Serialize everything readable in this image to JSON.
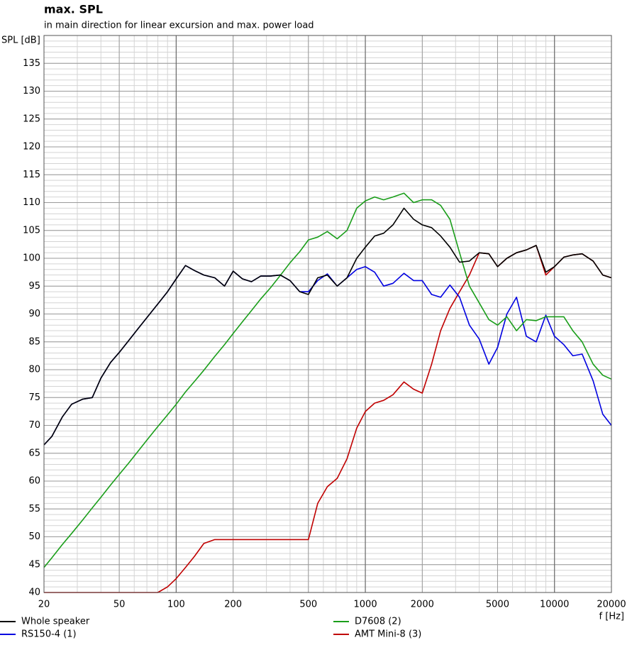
{
  "chart_data": {
    "type": "line",
    "title": "max. SPL",
    "subtitle": "in main direction for linear excursion and max. power load",
    "y_label": "SPL [dB]",
    "x_label": "f [Hz]",
    "x_scale": "log",
    "grid": true,
    "legend": "bottom",
    "xlim": [
      20,
      20000
    ],
    "ylim": [
      40,
      140
    ],
    "xticks": [
      20,
      50,
      100,
      200,
      500,
      1000,
      2000,
      5000,
      10000,
      20000
    ],
    "yticks": [
      40,
      45,
      50,
      55,
      60,
      65,
      70,
      75,
      80,
      85,
      90,
      95,
      100,
      105,
      110,
      115,
      120,
      125,
      130,
      135
    ],
    "x": [
      20,
      22,
      25,
      28,
      32,
      36,
      40,
      45,
      50,
      56,
      63,
      71,
      80,
      90,
      100,
      112,
      125,
      140,
      160,
      180,
      200,
      224,
      250,
      280,
      315,
      355,
      400,
      450,
      500,
      560,
      630,
      710,
      800,
      900,
      1000,
      1120,
      1250,
      1400,
      1600,
      1800,
      2000,
      2240,
      2500,
      2800,
      3150,
      3550,
      4000,
      4500,
      5000,
      5600,
      6300,
      7100,
      8000,
      9000,
      10000,
      11200,
      12500,
      14000,
      16000,
      18000,
      20000
    ],
    "series": [
      {
        "name": "Whole speaker",
        "color": "#000000",
        "values": [
          66.5,
          68,
          71.5,
          73.8,
          74.7,
          75,
          78.5,
          81.3,
          83.1,
          85.2,
          87.4,
          89.6,
          91.8,
          94,
          96.3,
          98.7,
          97.8,
          97,
          96.5,
          95,
          97.7,
          96.3,
          95.8,
          96.8,
          96.8,
          97,
          96,
          94,
          93.5,
          96.5,
          97,
          95,
          96.5,
          100,
          102,
          104,
          104.5,
          106,
          109,
          107,
          106,
          105.5,
          104,
          102,
          99.3,
          99.5,
          101,
          100.8,
          98.5,
          100,
          101,
          101.5,
          102.3,
          97.5,
          98.5,
          100.2,
          100.6,
          100.8,
          99.5,
          97,
          96.5
        ]
      },
      {
        "name": "D7608 (2)",
        "color": "#1a9e1a",
        "values": [
          44.5,
          46.2,
          48.6,
          50.6,
          53,
          55.2,
          57.1,
          59.3,
          61.2,
          63.2,
          65.4,
          67.6,
          69.8,
          71.9,
          73.8,
          76,
          77.9,
          79.9,
          82.4,
          84.5,
          86.5,
          88.6,
          90.6,
          92.7,
          94.7,
          96.9,
          99.2,
          101.2,
          103.3,
          103.8,
          104.8,
          103.5,
          105,
          109,
          110.3,
          111,
          110.5,
          111,
          111.7,
          110,
          110.5,
          110.5,
          109.5,
          107,
          101,
          95,
          92,
          89,
          88,
          89.5,
          87,
          89,
          88.8,
          89.5,
          89.5,
          89.5,
          87,
          85,
          81,
          79,
          78.3
        ]
      },
      {
        "name": "RS150-4 (1)",
        "color": "#0000e0",
        "values": [
          66.5,
          68,
          71.5,
          73.8,
          74.7,
          75,
          78.5,
          81.3,
          83.1,
          85.2,
          87.4,
          89.6,
          91.8,
          94,
          96.3,
          98.7,
          97.8,
          97,
          96.5,
          95,
          97.7,
          96.3,
          95.8,
          96.8,
          96.8,
          97,
          96,
          94,
          94,
          96,
          97.2,
          95,
          96.5,
          98,
          98.5,
          97.5,
          95,
          95.5,
          97.3,
          96,
          96,
          93.5,
          93,
          95.2,
          93,
          88,
          85.5,
          81,
          84,
          90,
          93,
          86,
          85,
          89.8,
          86,
          84.5,
          82.5,
          82.8,
          78,
          72,
          70
        ]
      },
      {
        "name": "AMT Mini-8 (3)",
        "color": "#c00000",
        "values": [
          40,
          40,
          40,
          40,
          40,
          40,
          40,
          40,
          40,
          40,
          40,
          40,
          40,
          41,
          42.5,
          44.5,
          46.5,
          48.8,
          49.5,
          49.5,
          49.5,
          49.5,
          49.5,
          49.5,
          49.5,
          49.5,
          49.5,
          49.5,
          49.5,
          56,
          59,
          60.5,
          64,
          69.5,
          72.5,
          74,
          74.5,
          75.5,
          77.8,
          76.5,
          75.8,
          81,
          87,
          91,
          94,
          97,
          101,
          100.8,
          98.5,
          100,
          101,
          101.5,
          102.3,
          97,
          98.5,
          100.2,
          100.6,
          100.8,
          99.5,
          97,
          96.5
        ]
      }
    ]
  }
}
